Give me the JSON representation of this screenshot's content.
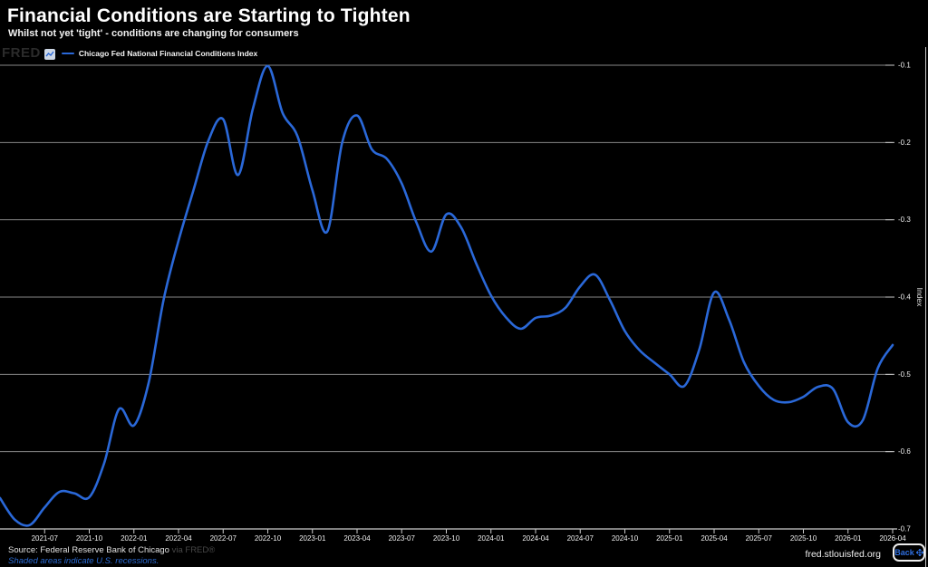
{
  "page": {
    "title": "Financial Conditions are Starting to Tighten",
    "subtitle": "Whilst not yet 'tight' - conditions are changing for consumers",
    "fred_logo": "FRED",
    "footer": {
      "source_prefix": "Source: Federal Reserve Bank of Chicago",
      "source_via": "via FRED®",
      "recession_note": "Shaded areas indicate U.S. recessions.",
      "site_url": "fred.stlouisfed.org",
      "back_label": "Back"
    }
  },
  "legend": {
    "series_label": "Chicago Fed National Financial Conditions Index"
  },
  "colors": {
    "background": "#000000",
    "line": "#2a68d8",
    "grid": "#888888",
    "axis": "#cccccc",
    "tick_text": "#eeeeee",
    "link_blue": "#2b6bd3",
    "fred_logo_gray": "#2b2b2b"
  },
  "chart_data": {
    "type": "line",
    "title": "Financial Conditions are Starting to Tighten",
    "subtitle": "Whilst not yet 'tight' - conditions are changing for consumers",
    "ylabel": "Index",
    "ylim": [
      -0.7,
      -0.1
    ],
    "grid": true,
    "legend_position": "top-left",
    "y_ticks": [
      "-0.1",
      "-0.2",
      "-0.3",
      "-0.4",
      "-0.5",
      "-0.6",
      "-0.7"
    ],
    "x_tick_labels": [
      "2021-07",
      "2021-10",
      "2022-01",
      "2022-04",
      "2022-07",
      "2022-10",
      "2023-01",
      "2023-04",
      "2023-07",
      "2023-10",
      "2024-01",
      "2024-04",
      "2024-07",
      "2024-10",
      "2025-01",
      "2025-04",
      "2025-07",
      "2025-10",
      "2026-01",
      "2026-04"
    ],
    "series": [
      {
        "name": "Chicago Fed National Financial Conditions Index",
        "start_date": "2021-04",
        "interval": "monthly",
        "values": [
          -0.66,
          -0.688,
          -0.695,
          -0.672,
          -0.652,
          -0.654,
          -0.659,
          -0.615,
          -0.545,
          -0.566,
          -0.51,
          -0.403,
          -0.327,
          -0.262,
          -0.198,
          -0.17,
          -0.242,
          -0.156,
          -0.101,
          -0.162,
          -0.192,
          -0.262,
          -0.315,
          -0.2,
          -0.165,
          -0.209,
          -0.221,
          -0.253,
          -0.304,
          -0.341,
          -0.293,
          -0.31,
          -0.356,
          -0.398,
          -0.426,
          -0.441,
          -0.427,
          -0.424,
          -0.414,
          -0.386,
          -0.371,
          -0.404,
          -0.444,
          -0.469,
          -0.485,
          -0.5,
          -0.515,
          -0.468,
          -0.394,
          -0.429,
          -0.484,
          -0.515,
          -0.533,
          -0.536,
          -0.529,
          -0.516,
          -0.519,
          -0.562,
          -0.559,
          -0.492,
          -0.462
        ]
      }
    ]
  }
}
